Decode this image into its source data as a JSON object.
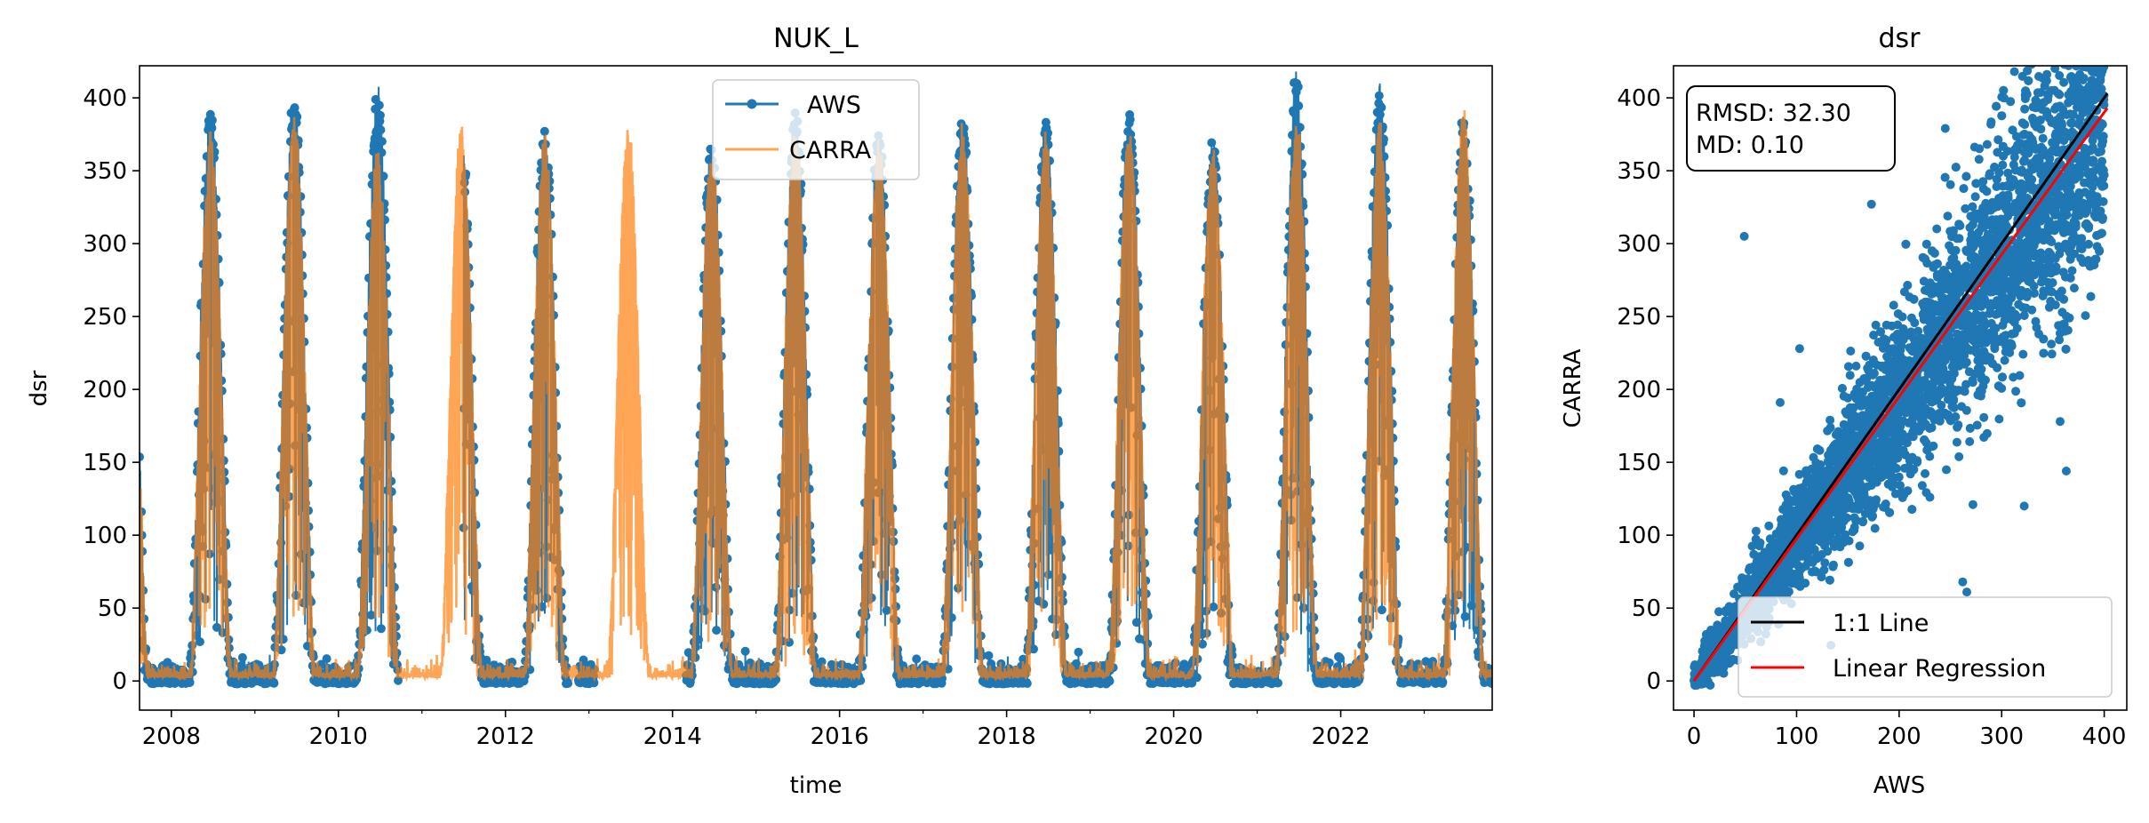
{
  "chart_data": [
    {
      "type": "line",
      "title": "NUK_L",
      "xlabel": "time",
      "ylabel": "dsr",
      "xlim": [
        "2007-08-15",
        "2023-10-25"
      ],
      "ylim": [
        -20,
        422
      ],
      "xticks": [
        "2008",
        "2010",
        "2012",
        "2014",
        "2016",
        "2018",
        "2020",
        "2022"
      ],
      "yticks": [
        0,
        50,
        100,
        150,
        200,
        250,
        300,
        350,
        400
      ],
      "legend": {
        "placement": "upper-center",
        "entries": [
          "AWS",
          "CARRA"
        ]
      },
      "grid": false,
      "series": [
        {
          "name": "AWS",
          "color": "#1f77b4",
          "marker": "circle",
          "gaps": [
            [
              "2010-09-20",
              "2011-07-01"
            ],
            [
              "2012-10-01",
              "2012-11-15"
            ],
            [
              "2013-01-25",
              "2014-03-01"
            ]
          ],
          "seasonal_peaks": [
            {
              "year": 2008,
              "peak": 385
            },
            {
              "year": 2009,
              "peak": 392
            },
            {
              "year": 2010,
              "peak": 397
            },
            {
              "year": 2012,
              "peak": 370
            },
            {
              "year": 2014,
              "peak": 362
            },
            {
              "year": 2015,
              "peak": 380
            },
            {
              "year": 2016,
              "peak": 368
            },
            {
              "year": 2017,
              "peak": 378
            },
            {
              "year": 2018,
              "peak": 377
            },
            {
              "year": 2019,
              "peak": 381
            },
            {
              "year": 2020,
              "peak": 362
            },
            {
              "year": 2021,
              "peak": 403
            },
            {
              "year": 2022,
              "peak": 398
            },
            {
              "year": 2023,
              "peak": 378
            }
          ],
          "winter_min": -4
        },
        {
          "name": "CARRA",
          "color": "#ff7f0e",
          "alpha": 0.7,
          "seasonal_peaks": [
            {
              "year": 2008,
              "peak": 365
            },
            {
              "year": 2009,
              "peak": 375
            },
            {
              "year": 2010,
              "peak": 355
            },
            {
              "year": 2011,
              "peak": 370
            },
            {
              "year": 2012,
              "peak": 362
            },
            {
              "year": 2013,
              "peak": 370
            },
            {
              "year": 2014,
              "peak": 355
            },
            {
              "year": 2015,
              "peak": 372
            },
            {
              "year": 2016,
              "peak": 360
            },
            {
              "year": 2017,
              "peak": 370
            },
            {
              "year": 2018,
              "peak": 365
            },
            {
              "year": 2019,
              "peak": 368
            },
            {
              "year": 2020,
              "peak": 358
            },
            {
              "year": 2021,
              "peak": 372
            },
            {
              "year": 2022,
              "peak": 370
            },
            {
              "year": 2023,
              "peak": 385
            }
          ],
          "winter_min": 0
        }
      ]
    },
    {
      "type": "scatter",
      "title": "dsr",
      "xlabel": "AWS",
      "ylabel": "CARRA",
      "xlim": [
        -20,
        422
      ],
      "ylim": [
        -20,
        422
      ],
      "xticks": [
        0,
        100,
        200,
        300,
        400
      ],
      "yticks": [
        0,
        50,
        100,
        150,
        200,
        250,
        300,
        350,
        400
      ],
      "stats_box": {
        "rmsd": "RMSD: 32.30",
        "md": "MD: 0.10"
      },
      "legend": {
        "placement": "lower-right",
        "entries": [
          "1:1 Line",
          "Linear Regression"
        ]
      },
      "grid": false,
      "points_color": "#1f77b4",
      "lines": [
        {
          "name": "1:1 Line",
          "color": "#000000",
          "x": [
            0,
            403
          ],
          "y": [
            0,
            403
          ]
        },
        {
          "name": "Linear Regression",
          "color": "#ff0000",
          "x": [
            0,
            403
          ],
          "y": [
            0,
            393
          ]
        }
      ],
      "outliers": [
        {
          "x": 49,
          "y": 305
        },
        {
          "x": 173,
          "y": 327
        },
        {
          "x": 363,
          "y": 144
        },
        {
          "x": 357,
          "y": 178
        },
        {
          "x": 262,
          "y": 68
        },
        {
          "x": 266,
          "y": 61
        },
        {
          "x": 245,
          "y": 379
        },
        {
          "x": 230,
          "y": 126
        },
        {
          "x": 272,
          "y": 121
        },
        {
          "x": 322,
          "y": 120
        },
        {
          "x": 103,
          "y": 228
        },
        {
          "x": 84,
          "y": 191
        }
      ]
    }
  ]
}
